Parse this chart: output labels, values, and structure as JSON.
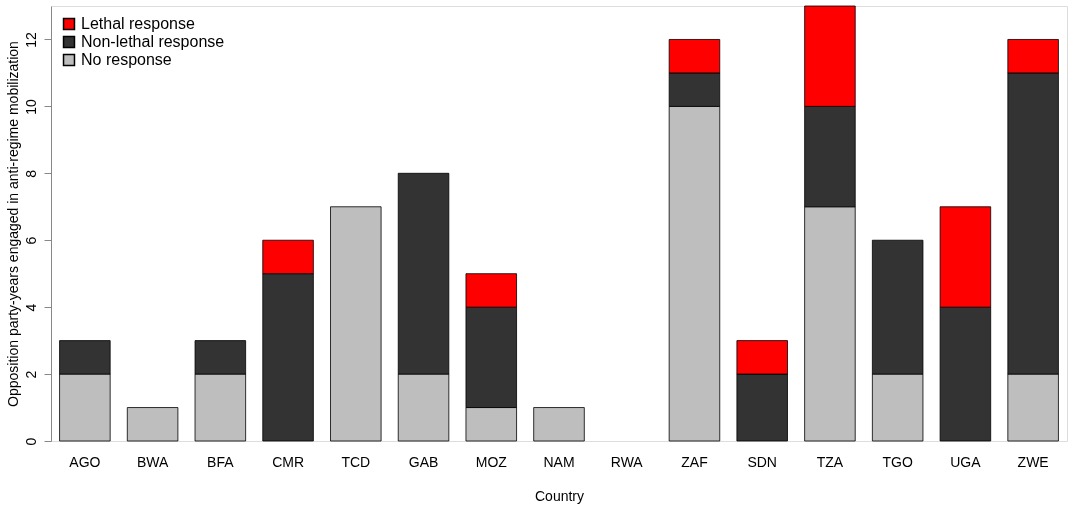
{
  "chart_data": {
    "type": "bar",
    "stacked": true,
    "xlabel": "Country",
    "ylabel": "Opposition party-years engaged in anti-regime mobilization",
    "categories": [
      "AGO",
      "BWA",
      "BFA",
      "CMR",
      "TCD",
      "GAB",
      "MOZ",
      "NAM",
      "RWA",
      "ZAF",
      "SDN",
      "TZA",
      "TGO",
      "UGA",
      "ZWE"
    ],
    "series": [
      {
        "name": "No response",
        "color": "#bebebe",
        "values": [
          2,
          1,
          2,
          0,
          7,
          2,
          1,
          1,
          0,
          10,
          0,
          7,
          2,
          0,
          2
        ]
      },
      {
        "name": "Non-lethal response",
        "color": "#333333",
        "values": [
          1,
          0,
          1,
          5,
          0,
          6,
          3,
          0,
          0,
          1,
          2,
          3,
          4,
          4,
          9
        ]
      },
      {
        "name": "Lethal response",
        "color": "#ff0000",
        "values": [
          0,
          0,
          0,
          1,
          0,
          0,
          1,
          0,
          0,
          1,
          1,
          3,
          0,
          3,
          1
        ]
      }
    ],
    "ylim": [
      0,
      13
    ],
    "yticks": [
      0,
      2,
      4,
      6,
      8,
      10,
      12
    ],
    "grid": false,
    "legend": "top left"
  }
}
